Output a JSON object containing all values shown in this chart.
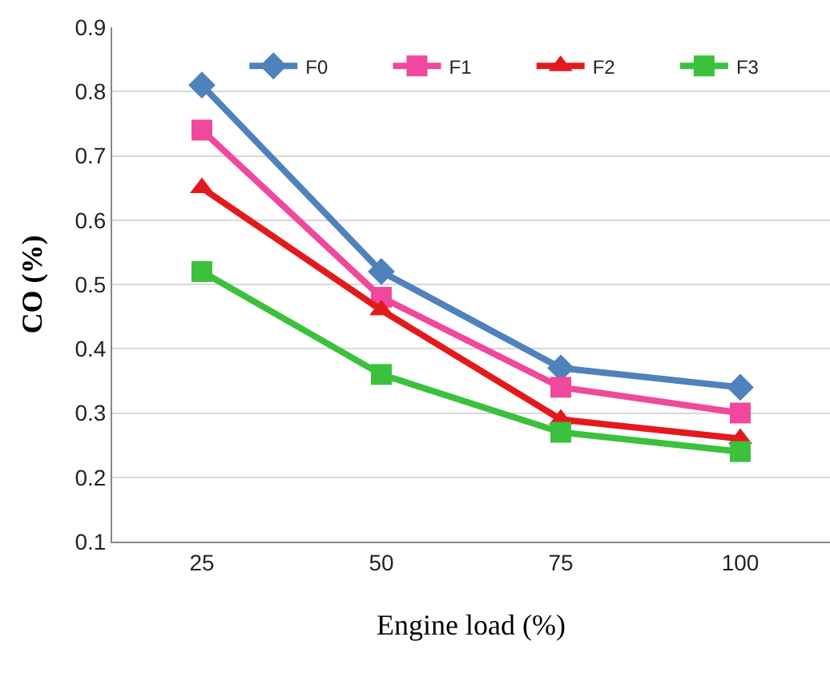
{
  "chart_data": {
    "type": "line",
    "xlabel": "Engine load (%)",
    "ylabel": "CO (%)",
    "categories": [
      "25",
      "50",
      "75",
      "100"
    ],
    "series": [
      {
        "name": "F0",
        "color": "#4f81bd",
        "marker": "diamond",
        "values": [
          0.81,
          0.52,
          0.37,
          0.34
        ]
      },
      {
        "name": "F1",
        "color": "#f0489c",
        "marker": "square",
        "values": [
          0.74,
          0.48,
          0.34,
          0.3
        ]
      },
      {
        "name": "F2",
        "color": "#e31a1c",
        "marker": "triangle",
        "values": [
          0.65,
          0.46,
          0.29,
          0.26
        ]
      },
      {
        "name": "F3",
        "color": "#3cc13c",
        "marker": "square",
        "values": [
          0.52,
          0.36,
          0.27,
          0.24
        ]
      }
    ],
    "ylim": [
      0.1,
      0.9
    ],
    "yticks": [
      0.1,
      0.2,
      0.3,
      0.4,
      0.5,
      0.6,
      0.7,
      0.8,
      0.9
    ],
    "grid": "y",
    "legend": "top",
    "line_style": "solid"
  }
}
